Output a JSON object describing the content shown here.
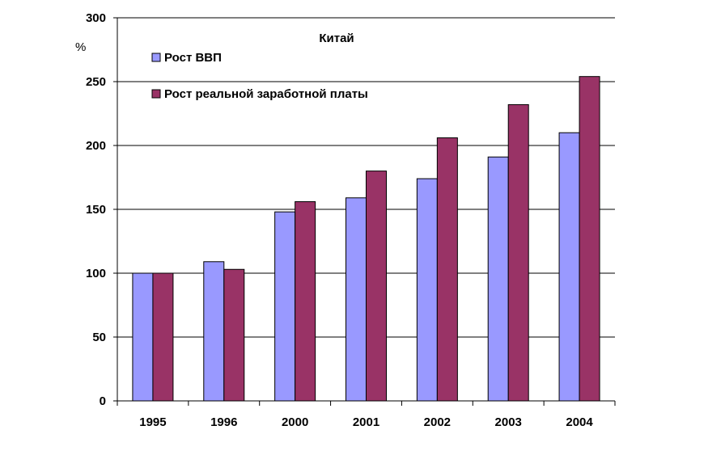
{
  "chart_data": {
    "type": "bar",
    "title": "Китай",
    "ylabel": "%",
    "xlabel": "",
    "categories": [
      "1995",
      "1996",
      "2000",
      "2001",
      "2002",
      "2003",
      "2004"
    ],
    "series": [
      {
        "name": "Рост ВВП",
        "color": "#9999FF",
        "values": [
          100,
          109,
          148,
          159,
          174,
          191,
          210
        ]
      },
      {
        "name": "Рост реальной заработной платы",
        "color": "#993366",
        "values": [
          100,
          103,
          156,
          180,
          206,
          232,
          254
        ]
      }
    ],
    "ylim": [
      0,
      300
    ],
    "yticks": [
      0,
      50,
      100,
      150,
      200,
      250,
      300
    ],
    "grid": true,
    "legend_position": "top-left"
  }
}
